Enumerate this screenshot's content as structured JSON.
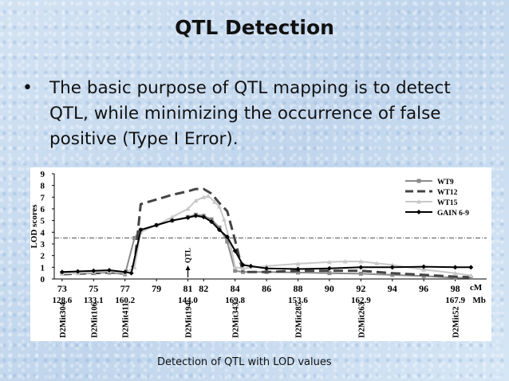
{
  "slide": {
    "title": "QTL Detection",
    "bullet": "The basic purpose of QTL mapping is to detect QTL, while minimizing the occurrence of false positive (Type I Error).",
    "caption": "Detection of QTL with LOD values"
  },
  "chart_data": {
    "type": "line",
    "ylabel": "LOD scores",
    "ylim": [
      0,
      9
    ],
    "yticks": [
      0,
      1,
      2,
      3,
      4,
      5,
      6,
      7,
      8,
      9
    ],
    "xlim": [
      72.5,
      100
    ],
    "cm_ticks": [
      73,
      75,
      77,
      79,
      81,
      82,
      84,
      86,
      88,
      90,
      92,
      94,
      96,
      98
    ],
    "cm_unit": "cM",
    "mb_labels": [
      {
        "cm": 73,
        "label": "128.6"
      },
      {
        "cm": 75,
        "label": "133.1"
      },
      {
        "cm": 77,
        "label": "160.2"
      },
      {
        "cm": 81,
        "label": "144.0"
      },
      {
        "cm": 84,
        "label": "169.8"
      },
      {
        "cm": 88,
        "label": "153.6"
      },
      {
        "cm": 92,
        "label": "162.9"
      },
      {
        "cm": 98,
        "label": "167.9"
      }
    ],
    "mb_unit": "Mb",
    "markers": [
      {
        "cm": 73,
        "name": "D2Mit304"
      },
      {
        "cm": 75,
        "name": "D2Mit106"
      },
      {
        "cm": 77,
        "name": "D2Mit411"
      },
      {
        "cm": 81,
        "name": "D2Mit194"
      },
      {
        "cm": 84,
        "name": "D2Mit343"
      },
      {
        "cm": 88,
        "name": "D2Mit285"
      },
      {
        "cm": 92,
        "name": "D2Mit263"
      },
      {
        "cm": 98,
        "name": "D2Mit52"
      }
    ],
    "threshold": 3.5,
    "qtl_annotation": {
      "label": "QTL",
      "cm": 81
    },
    "legend": "top-right",
    "grid": false,
    "series": [
      {
        "name": "WT9",
        "color": "#8a8a8a",
        "style": "solid-square",
        "points": [
          [
            73,
            0.5
          ],
          [
            74,
            0.5
          ],
          [
            75,
            0.5
          ],
          [
            76,
            0.55
          ],
          [
            77,
            0.4
          ],
          [
            77.6,
            3.5
          ],
          [
            78,
            4.2
          ],
          [
            79,
            4.6
          ],
          [
            80,
            5.0
          ],
          [
            81,
            5.3
          ],
          [
            81.5,
            5.5
          ],
          [
            82,
            5.4
          ],
          [
            82.5,
            5.1
          ],
          [
            83,
            4.4
          ],
          [
            83.5,
            3.2
          ],
          [
            84,
            0.7
          ],
          [
            84.5,
            0.6
          ],
          [
            86,
            0.6
          ],
          [
            88,
            0.55
          ],
          [
            90,
            0.5
          ],
          [
            92,
            0.45
          ],
          [
            94,
            0.35
          ],
          [
            96,
            0.25
          ],
          [
            98,
            0.1
          ],
          [
            99,
            0.1
          ]
        ]
      },
      {
        "name": "WT12",
        "color": "#444444",
        "style": "dashed",
        "points": [
          [
            73,
            0.4
          ],
          [
            74,
            0.45
          ],
          [
            75,
            0.5
          ],
          [
            76,
            0.55
          ],
          [
            77,
            0.5
          ],
          [
            77.6,
            1.2
          ],
          [
            78,
            6.4
          ],
          [
            79,
            6.8
          ],
          [
            80,
            7.2
          ],
          [
            81,
            7.5
          ],
          [
            81.5,
            7.7
          ],
          [
            82,
            7.7
          ],
          [
            82.5,
            7.3
          ],
          [
            83,
            6.5
          ],
          [
            83.5,
            5.8
          ],
          [
            84,
            3.3
          ],
          [
            84.5,
            0.6
          ],
          [
            86,
            0.6
          ],
          [
            88,
            0.7
          ],
          [
            90,
            0.7
          ],
          [
            92,
            0.7
          ],
          [
            94,
            0.5
          ],
          [
            96,
            0.35
          ],
          [
            98,
            0.2
          ],
          [
            99,
            0.15
          ]
        ]
      },
      {
        "name": "WT15",
        "color": "#c8c8c8",
        "style": "solid-triangle",
        "points": [
          [
            73,
            0.45
          ],
          [
            74,
            0.5
          ],
          [
            75,
            0.6
          ],
          [
            76,
            0.65
          ],
          [
            77,
            0.5
          ],
          [
            77.6,
            1.0
          ],
          [
            78,
            4.0
          ],
          [
            79,
            4.6
          ],
          [
            80,
            5.3
          ],
          [
            81,
            6.0
          ],
          [
            81.5,
            6.7
          ],
          [
            82,
            7.0
          ],
          [
            82.3,
            7.1
          ],
          [
            82.7,
            6.6
          ],
          [
            83,
            6.2
          ],
          [
            83.3,
            5.1
          ],
          [
            83.7,
            3.0
          ],
          [
            84,
            1.0
          ],
          [
            84.5,
            0.9
          ],
          [
            86,
            1.1
          ],
          [
            88,
            1.3
          ],
          [
            90,
            1.45
          ],
          [
            91,
            1.5
          ],
          [
            92,
            1.5
          ],
          [
            93,
            1.35
          ],
          [
            94,
            1.2
          ],
          [
            96,
            0.8
          ],
          [
            98,
            0.5
          ],
          [
            99,
            0.3
          ]
        ]
      },
      {
        "name": "GAIN 6-9",
        "color": "#000000",
        "style": "solid-diamond",
        "points": [
          [
            73,
            0.6
          ],
          [
            74,
            0.65
          ],
          [
            75,
            0.7
          ],
          [
            76,
            0.75
          ],
          [
            77,
            0.6
          ],
          [
            77.4,
            0.5
          ],
          [
            78,
            4.2
          ],
          [
            79,
            4.6
          ],
          [
            80,
            5.0
          ],
          [
            81,
            5.25
          ],
          [
            81.5,
            5.4
          ],
          [
            82,
            5.3
          ],
          [
            82.5,
            4.9
          ],
          [
            83,
            4.2
          ],
          [
            83.5,
            3.6
          ],
          [
            84,
            2.4
          ],
          [
            84.5,
            1.2
          ],
          [
            85,
            1.1
          ],
          [
            86,
            0.9
          ],
          [
            88,
            0.85
          ],
          [
            90,
            0.9
          ],
          [
            92,
            1.0
          ],
          [
            94,
            1.0
          ],
          [
            96,
            1.05
          ],
          [
            98,
            1.0
          ],
          [
            99,
            1.0
          ]
        ]
      }
    ]
  }
}
